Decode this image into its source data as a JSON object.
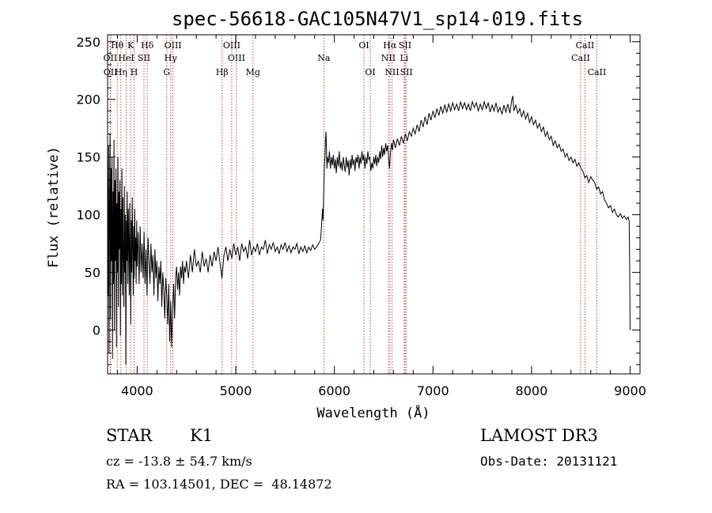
{
  "chart_data": {
    "type": "line",
    "title": "spec-56618-GAC105N47V1_sp14-019.fits",
    "xlabel": "Wavelength (Å)",
    "ylabel": "Flux (relative)",
    "xlim": [
      3700,
      9100
    ],
    "ylim": [
      -38,
      256
    ],
    "xticks": [
      4000,
      5000,
      6000,
      7000,
      8000,
      9000
    ],
    "yticks": [
      0,
      50,
      100,
      150,
      200,
      250
    ],
    "grid": false,
    "series_color": "#000000",
    "line_color": "#aa2222",
    "spectrum": [
      [
        3700,
        135
      ],
      [
        3705,
        30
      ],
      [
        3710,
        160
      ],
      [
        3715,
        -20
      ],
      [
        3720,
        110
      ],
      [
        3725,
        170
      ],
      [
        3730,
        10
      ],
      [
        3735,
        140
      ],
      [
        3740,
        60
      ],
      [
        3745,
        150
      ],
      [
        3750,
        -25
      ],
      [
        3755,
        120
      ],
      [
        3760,
        40
      ],
      [
        3765,
        165
      ],
      [
        3770,
        0
      ],
      [
        3775,
        130
      ],
      [
        3780,
        60
      ],
      [
        3785,
        140
      ],
      [
        3790,
        -15
      ],
      [
        3795,
        110
      ],
      [
        3800,
        50
      ],
      [
        3805,
        150
      ],
      [
        3810,
        20
      ],
      [
        3815,
        120
      ],
      [
        3820,
        70
      ],
      [
        3825,
        130
      ],
      [
        3830,
        -5
      ],
      [
        3835,
        105
      ],
      [
        3840,
        40
      ],
      [
        3845,
        140
      ],
      [
        3850,
        30
      ],
      [
        3855,
        115
      ],
      [
        3860,
        70
      ],
      [
        3865,
        20
      ],
      [
        3870,
        125
      ],
      [
        3875,
        50
      ],
      [
        3880,
        100
      ],
      [
        3885,
        -30
      ],
      [
        3890,
        95
      ],
      [
        3895,
        60
      ],
      [
        3900,
        120
      ],
      [
        3905,
        40
      ],
      [
        3910,
        105
      ],
      [
        3915,
        75
      ],
      [
        3920,
        30
      ],
      [
        3925,
        110
      ],
      [
        3930,
        60
      ],
      [
        3935,
        5
      ],
      [
        3940,
        95
      ],
      [
        3945,
        50
      ],
      [
        3950,
        115
      ],
      [
        3955,
        70
      ],
      [
        3960,
        30
      ],
      [
        3965,
        90
      ],
      [
        3970,
        45
      ],
      [
        3975,
        105
      ],
      [
        3980,
        60
      ],
      [
        3985,
        80
      ],
      [
        3990,
        40
      ],
      [
        3995,
        95
      ],
      [
        4000,
        55
      ],
      [
        4010,
        85
      ],
      [
        4020,
        40
      ],
      [
        4030,
        90
      ],
      [
        4040,
        50
      ],
      [
        4050,
        75
      ],
      [
        4060,
        45
      ],
      [
        4070,
        85
      ],
      [
        4080,
        40
      ],
      [
        4090,
        70
      ],
      [
        4100,
        30
      ],
      [
        4110,
        80
      ],
      [
        4120,
        60
      ],
      [
        4130,
        40
      ],
      [
        4140,
        75
      ],
      [
        4150,
        50
      ],
      [
        4160,
        65
      ],
      [
        4170,
        30
      ],
      [
        4180,
        70
      ],
      [
        4190,
        45
      ],
      [
        4200,
        60
      ],
      [
        4210,
        25
      ],
      [
        4220,
        55
      ],
      [
        4230,
        40
      ],
      [
        4240,
        60
      ],
      [
        4250,
        20
      ],
      [
        4260,
        50
      ],
      [
        4270,
        35
      ],
      [
        4280,
        10
      ],
      [
        4290,
        45
      ],
      [
        4300,
        30
      ],
      [
        4310,
        5
      ],
      [
        4320,
        40
      ],
      [
        4330,
        -10
      ],
      [
        4340,
        25
      ],
      [
        4350,
        -15
      ],
      [
        4360,
        20
      ],
      [
        4370,
        40
      ],
      [
        4380,
        10
      ],
      [
        4390,
        45
      ],
      [
        4400,
        55
      ],
      [
        4410,
        35
      ],
      [
        4420,
        50
      ],
      [
        4430,
        30
      ],
      [
        4440,
        55
      ],
      [
        4450,
        45
      ],
      [
        4460,
        60
      ],
      [
        4470,
        40
      ],
      [
        4480,
        55
      ],
      [
        4490,
        50
      ],
      [
        4500,
        60
      ],
      [
        4520,
        45
      ],
      [
        4540,
        65
      ],
      [
        4560,
        50
      ],
      [
        4580,
        70
      ],
      [
        4600,
        55
      ],
      [
        4620,
        60
      ],
      [
        4640,
        50
      ],
      [
        4660,
        68
      ],
      [
        4680,
        55
      ],
      [
        4700,
        62
      ],
      [
        4720,
        50
      ],
      [
        4740,
        65
      ],
      [
        4760,
        55
      ],
      [
        4780,
        68
      ],
      [
        4800,
        60
      ],
      [
        4820,
        72
      ],
      [
        4840,
        58
      ],
      [
        4860,
        45
      ],
      [
        4880,
        65
      ],
      [
        4900,
        72
      ],
      [
        4920,
        60
      ],
      [
        4940,
        70
      ],
      [
        4960,
        62
      ],
      [
        4980,
        75
      ],
      [
        5000,
        65
      ],
      [
        5020,
        72
      ],
      [
        5040,
        60
      ],
      [
        5060,
        75
      ],
      [
        5080,
        68
      ],
      [
        5100,
        72
      ],
      [
        5120,
        62
      ],
      [
        5140,
        78
      ],
      [
        5160,
        65
      ],
      [
        5180,
        72
      ],
      [
        5200,
        68
      ],
      [
        5220,
        75
      ],
      [
        5240,
        65
      ],
      [
        5260,
        72
      ],
      [
        5280,
        70
      ],
      [
        5300,
        78
      ],
      [
        5320,
        66
      ],
      [
        5340,
        74
      ],
      [
        5360,
        70
      ],
      [
        5380,
        76
      ],
      [
        5400,
        68
      ],
      [
        5420,
        72
      ],
      [
        5440,
        66
      ],
      [
        5460,
        74
      ],
      [
        5480,
        70
      ],
      [
        5500,
        76
      ],
      [
        5520,
        68
      ],
      [
        5540,
        73
      ],
      [
        5560,
        67
      ],
      [
        5580,
        72
      ],
      [
        5600,
        70
      ],
      [
        5620,
        75
      ],
      [
        5640,
        66
      ],
      [
        5660,
        72
      ],
      [
        5680,
        68
      ],
      [
        5700,
        73
      ],
      [
        5720,
        67
      ],
      [
        5740,
        72
      ],
      [
        5760,
        69
      ],
      [
        5780,
        74
      ],
      [
        5800,
        70
      ],
      [
        5820,
        72
      ],
      [
        5840,
        75
      ],
      [
        5860,
        78
      ],
      [
        5870,
        90
      ],
      [
        5880,
        105
      ],
      [
        5885,
        95
      ],
      [
        5890,
        110
      ],
      [
        5895,
        130
      ],
      [
        5900,
        145
      ],
      [
        5905,
        150
      ],
      [
        5910,
        165
      ],
      [
        5915,
        172
      ],
      [
        5920,
        155
      ],
      [
        5925,
        140
      ],
      [
        5930,
        150
      ],
      [
        5940,
        145
      ],
      [
        5950,
        155
      ],
      [
        5960,
        140
      ],
      [
        5970,
        150
      ],
      [
        5980,
        143
      ],
      [
        5990,
        152
      ],
      [
        6000,
        140
      ],
      [
        6010,
        148
      ],
      [
        6020,
        136
      ],
      [
        6030,
        150
      ],
      [
        6040,
        142
      ],
      [
        6050,
        155
      ],
      [
        6060,
        140
      ],
      [
        6070,
        146
      ],
      [
        6080,
        138
      ],
      [
        6090,
        150
      ],
      [
        6100,
        143
      ],
      [
        6110,
        137
      ],
      [
        6120,
        150
      ],
      [
        6130,
        141
      ],
      [
        6140,
        147
      ],
      [
        6150,
        134
      ],
      [
        6160,
        148
      ],
      [
        6170,
        140
      ],
      [
        6180,
        152
      ],
      [
        6190,
        143
      ],
      [
        6200,
        148
      ],
      [
        6210,
        138
      ],
      [
        6220,
        150
      ],
      [
        6230,
        145
      ],
      [
        6240,
        152
      ],
      [
        6250,
        140
      ],
      [
        6260,
        150
      ],
      [
        6270,
        144
      ],
      [
        6280,
        155
      ],
      [
        6290,
        147
      ],
      [
        6300,
        152
      ],
      [
        6310,
        140
      ],
      [
        6320,
        150
      ],
      [
        6330,
        144
      ],
      [
        6340,
        155
      ],
      [
        6350,
        148
      ],
      [
        6360,
        150
      ],
      [
        6370,
        138
      ],
      [
        6380,
        145
      ],
      [
        6390,
        140
      ],
      [
        6400,
        150
      ],
      [
        6410,
        144
      ],
      [
        6420,
        152
      ],
      [
        6430,
        142
      ],
      [
        6440,
        150
      ],
      [
        6450,
        145
      ],
      [
        6460,
        155
      ],
      [
        6470,
        148
      ],
      [
        6480,
        160
      ],
      [
        6490,
        150
      ],
      [
        6500,
        158
      ],
      [
        6510,
        152
      ],
      [
        6520,
        162
      ],
      [
        6530,
        155
      ],
      [
        6540,
        160
      ],
      [
        6550,
        150
      ],
      [
        6560,
        140
      ],
      [
        6570,
        155
      ],
      [
        6580,
        162
      ],
      [
        6590,
        156
      ],
      [
        6600,
        165
      ],
      [
        6620,
        158
      ],
      [
        6640,
        166
      ],
      [
        6660,
        160
      ],
      [
        6680,
        168
      ],
      [
        6700,
        162
      ],
      [
        6720,
        170
      ],
      [
        6740,
        164
      ],
      [
        6760,
        172
      ],
      [
        6780,
        168
      ],
      [
        6800,
        175
      ],
      [
        6820,
        170
      ],
      [
        6840,
        178
      ],
      [
        6860,
        172
      ],
      [
        6880,
        182
      ],
      [
        6900,
        176
      ],
      [
        6920,
        185
      ],
      [
        6940,
        178
      ],
      [
        6960,
        188
      ],
      [
        6980,
        182
      ],
      [
        7000,
        190
      ],
      [
        7020,
        184
      ],
      [
        7040,
        192
      ],
      [
        7060,
        186
      ],
      [
        7080,
        194
      ],
      [
        7100,
        188
      ],
      [
        7120,
        195
      ],
      [
        7140,
        189
      ],
      [
        7160,
        196
      ],
      [
        7180,
        190
      ],
      [
        7200,
        197
      ],
      [
        7220,
        191
      ],
      [
        7240,
        196
      ],
      [
        7260,
        190
      ],
      [
        7280,
        198
      ],
      [
        7300,
        192
      ],
      [
        7320,
        197
      ],
      [
        7340,
        191
      ],
      [
        7360,
        196
      ],
      [
        7380,
        190
      ],
      [
        7400,
        198
      ],
      [
        7420,
        193
      ],
      [
        7440,
        197
      ],
      [
        7460,
        190
      ],
      [
        7480,
        196
      ],
      [
        7500,
        191
      ],
      [
        7520,
        198
      ],
      [
        7540,
        192
      ],
      [
        7560,
        197
      ],
      [
        7580,
        189
      ],
      [
        7600,
        195
      ],
      [
        7620,
        190
      ],
      [
        7640,
        197
      ],
      [
        7660,
        189
      ],
      [
        7680,
        193
      ],
      [
        7700,
        187
      ],
      [
        7720,
        195
      ],
      [
        7740,
        189
      ],
      [
        7760,
        196
      ],
      [
        7780,
        188
      ],
      [
        7800,
        200
      ],
      [
        7810,
        203
      ],
      [
        7820,
        190
      ],
      [
        7840,
        195
      ],
      [
        7860,
        188
      ],
      [
        7880,
        192
      ],
      [
        7900,
        185
      ],
      [
        7920,
        190
      ],
      [
        7940,
        183
      ],
      [
        7960,
        188
      ],
      [
        7980,
        180
      ],
      [
        8000,
        185
      ],
      [
        8020,
        178
      ],
      [
        8040,
        182
      ],
      [
        8060,
        175
      ],
      [
        8080,
        179
      ],
      [
        8100,
        172
      ],
      [
        8120,
        176
      ],
      [
        8140,
        168
      ],
      [
        8160,
        172
      ],
      [
        8180,
        165
      ],
      [
        8200,
        168
      ],
      [
        8220,
        160
      ],
      [
        8240,
        164
      ],
      [
        8260,
        158
      ],
      [
        8280,
        161
      ],
      [
        8300,
        155
      ],
      [
        8320,
        157
      ],
      [
        8340,
        150
      ],
      [
        8360,
        153
      ],
      [
        8380,
        147
      ],
      [
        8400,
        150
      ],
      [
        8420,
        145
      ],
      [
        8440,
        148
      ],
      [
        8460,
        142
      ],
      [
        8480,
        145
      ],
      [
        8500,
        140
      ],
      [
        8520,
        138
      ],
      [
        8540,
        132
      ],
      [
        8560,
        134
      ],
      [
        8580,
        128
      ],
      [
        8600,
        133
      ],
      [
        8620,
        130
      ],
      [
        8640,
        128
      ],
      [
        8660,
        122
      ],
      [
        8680,
        124
      ],
      [
        8700,
        118
      ],
      [
        8720,
        120
      ],
      [
        8740,
        113
      ],
      [
        8760,
        110
      ],
      [
        8780,
        106
      ],
      [
        8800,
        108
      ],
      [
        8820,
        102
      ],
      [
        8840,
        105
      ],
      [
        8860,
        100
      ],
      [
        8880,
        98
      ],
      [
        8900,
        101
      ],
      [
        8920,
        97
      ],
      [
        8940,
        99
      ],
      [
        8960,
        96
      ],
      [
        8980,
        98
      ],
      [
        8990,
        94
      ],
      [
        8995,
        60
      ],
      [
        9000,
        0
      ]
    ],
    "line_labels": [
      {
        "text": "Hθ",
        "x": 3798,
        "row": 0
      },
      {
        "text": "K",
        "x": 3934,
        "row": 0
      },
      {
        "text": "Hδ",
        "x": 4102,
        "row": 0
      },
      {
        "text": "OIII",
        "x": 4363,
        "row": 0
      },
      {
        "text": "OIII",
        "x": 4959,
        "row": 0
      },
      {
        "text": "OI",
        "x": 6300,
        "row": 0
      },
      {
        "text": "Hα",
        "x": 6563,
        "row": 0
      },
      {
        "text": "SII",
        "x": 6717,
        "row": 0
      },
      {
        "text": "CaII",
        "x": 8542,
        "row": 0
      },
      {
        "text": "OII",
        "x": 3727,
        "row": 1
      },
      {
        "text": "HeI",
        "x": 3889,
        "row": 1
      },
      {
        "text": "SII",
        "x": 4069,
        "row": 1
      },
      {
        "text": "Hγ",
        "x": 4340,
        "row": 1
      },
      {
        "text": "OIII",
        "x": 5007,
        "row": 1
      },
      {
        "text": "Na",
        "x": 5893,
        "row": 1
      },
      {
        "text": "NII",
        "x": 6548,
        "row": 1
      },
      {
        "text": "Li",
        "x": 6708,
        "row": 1
      },
      {
        "text": "CaII",
        "x": 8498,
        "row": 1
      },
      {
        "text": "OII",
        "x": 3729,
        "row": 2
      },
      {
        "text": "Hη",
        "x": 3835,
        "row": 2
      },
      {
        "text": "H",
        "x": 3969,
        "row": 2
      },
      {
        "text": "G",
        "x": 4300,
        "row": 2
      },
      {
        "text": "Hβ",
        "x": 4861,
        "row": 2
      },
      {
        "text": "Mg",
        "x": 5175,
        "row": 2
      },
      {
        "text": "OI",
        "x": 6364,
        "row": 2
      },
      {
        "text": "NII",
        "x": 6584,
        "row": 2
      },
      {
        "text": "SII",
        "x": 6731,
        "row": 2
      },
      {
        "text": "CaII",
        "x": 8662,
        "row": 2
      }
    ],
    "line_markers": [
      3727,
      3729,
      3798,
      3835,
      3889,
      3934,
      3969,
      4069,
      4102,
      4300,
      4340,
      4363,
      4861,
      4959,
      5007,
      5175,
      5893,
      6300,
      6364,
      6548,
      6563,
      6584,
      6708,
      6717,
      6731,
      8498,
      8542,
      8662
    ]
  },
  "info": {
    "class": "STAR",
    "subclass": "K1",
    "survey": "LAMOST DR3",
    "cz": "cz = -13.8 ± 54.7 km/s",
    "obs_date": "Obs-Date: 20131121",
    "radec": "RA = 103.14501, DEC =  48.14872"
  }
}
